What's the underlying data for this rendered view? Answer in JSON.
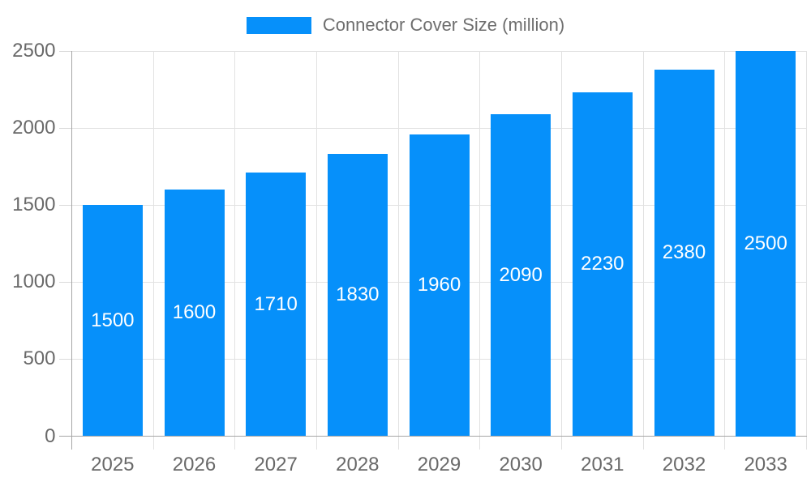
{
  "page": {
    "background": "#ffffff"
  },
  "chart_data": {
    "type": "bar",
    "title": "",
    "legend": "Connector Cover Size (million)",
    "legend_position": "top",
    "categories": [
      "2025",
      "2026",
      "2027",
      "2028",
      "2029",
      "2030",
      "2031",
      "2032",
      "2033"
    ],
    "series": [
      {
        "name": "Connector Cover Size (million)",
        "values": [
          1500,
          1600,
          1710,
          1830,
          1960,
          2090,
          2230,
          2380,
          2500
        ]
      }
    ],
    "value_labels": [
      1500,
      1600,
      1710,
      1830,
      1960,
      2090,
      2230,
      2380,
      2500
    ],
    "value_label_position": "inside-center",
    "xlabel": "",
    "ylabel": "",
    "ylim": [
      0,
      2500
    ],
    "y_ticks": [
      0,
      500,
      1000,
      1500,
      2000,
      2500
    ],
    "grid": true,
    "colors": {
      "bar": "#0690fa",
      "grid": "#e2e2e2",
      "tickmark": "#dadada",
      "axis": "#a6a6a6",
      "tick_label": "#696969",
      "legend_text": "#6e6e6e",
      "value_label": "#ffffff",
      "background": "#ffffff"
    }
  }
}
